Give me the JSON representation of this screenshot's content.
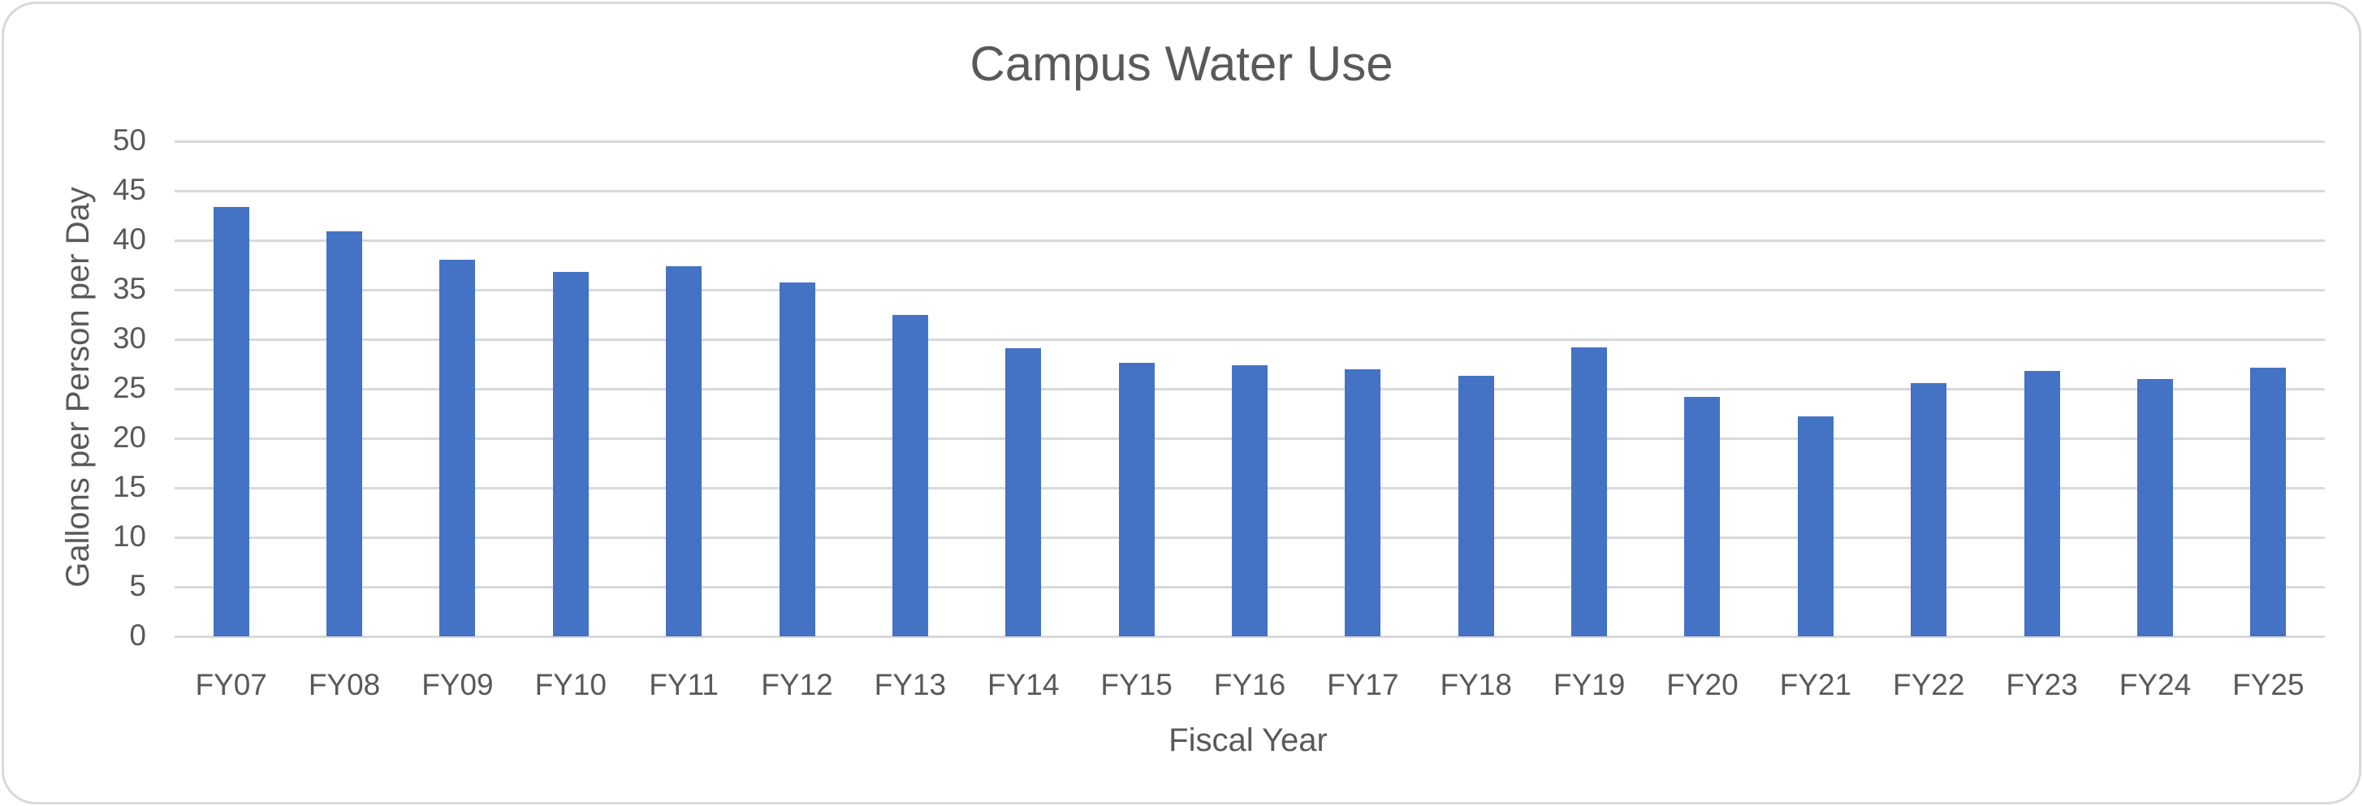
{
  "chart_data": {
    "type": "bar",
    "title": "Campus Water Use",
    "xlabel": "Fiscal Year",
    "ylabel": "Gallons per Person per Day",
    "categories": [
      "FY07",
      "FY08",
      "FY09",
      "FY10",
      "FY11",
      "FY12",
      "FY13",
      "FY14",
      "FY15",
      "FY16",
      "FY17",
      "FY18",
      "FY19",
      "FY20",
      "FY21",
      "FY22",
      "FY23",
      "FY24",
      "FY25"
    ],
    "values": [
      43.4,
      40.9,
      38.0,
      36.8,
      37.4,
      35.7,
      32.5,
      29.1,
      27.6,
      27.4,
      27.0,
      26.3,
      29.2,
      24.2,
      22.2,
      25.6,
      26.8,
      26.0,
      27.1
    ],
    "ylim": [
      0,
      50
    ],
    "ytick_step": 5,
    "ytick_labels": [
      "0",
      "5",
      "10",
      "15",
      "20",
      "25",
      "30",
      "35",
      "40",
      "45",
      "50"
    ],
    "grid": "horizontal",
    "legend": "none",
    "colors": {
      "bar": "#4472C4",
      "text": "#595959",
      "gridline": "#D9D9D9",
      "border": "#D9D9D9",
      "background": "#FFFFFF"
    }
  }
}
